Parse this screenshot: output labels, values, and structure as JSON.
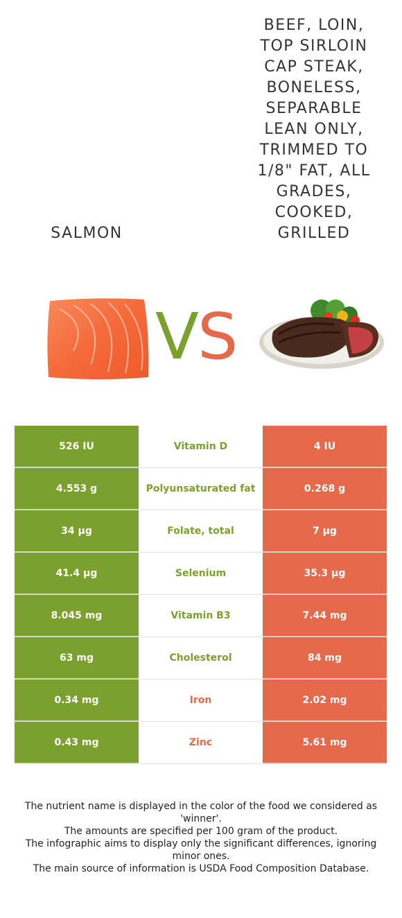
{
  "foods": {
    "left": {
      "name": "Salmon",
      "color": "#7ca02e"
    },
    "right": {
      "name": "Beef, loin, top sirloin cap steak, boneless, separable lean only, trimmed to 1/8\" fat, all grades, cooked, grilled",
      "color": "#e5694a"
    }
  },
  "vs": {
    "v": "V",
    "s": "S"
  },
  "rows": [
    {
      "nutrient": "Vitamin D",
      "left": "526 IU",
      "right": "4 IU",
      "winner": "left"
    },
    {
      "nutrient": "Polyunsaturated fat",
      "left": "4.553 g",
      "right": "0.268 g",
      "winner": "left"
    },
    {
      "nutrient": "Folate, total",
      "left": "34 µg",
      "right": "7 µg",
      "winner": "left"
    },
    {
      "nutrient": "Selenium",
      "left": "41.4 µg",
      "right": "35.3 µg",
      "winner": "left"
    },
    {
      "nutrient": "Vitamin B3",
      "left": "8.045 mg",
      "right": "7.44 mg",
      "winner": "left"
    },
    {
      "nutrient": "Cholesterol",
      "left": "63 mg",
      "right": "84 mg",
      "winner": "left"
    },
    {
      "nutrient": "Iron",
      "left": "0.34 mg",
      "right": "2.02 mg",
      "winner": "right"
    },
    {
      "nutrient": "Zinc",
      "left": "0.43 mg",
      "right": "5.61 mg",
      "winner": "right"
    }
  ],
  "footnote": [
    "The nutrient name is displayed in the color of the food we considered as 'winner'.",
    "The amounts are specified per 100 gram of the product.",
    "The infographic aims to display only the significant differences, ignoring minor ones.",
    "The main source of information is USDA Food Composition Database."
  ]
}
